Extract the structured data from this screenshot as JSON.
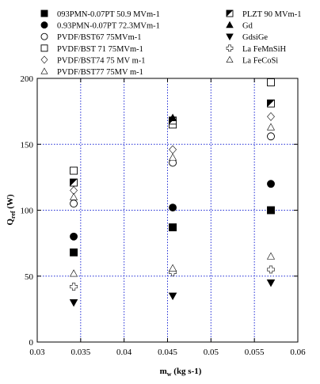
{
  "chart_data": {
    "type": "scatter",
    "xlabel": "m",
    "xlabel_sub": "w",
    "xlabel_unit": " (kg s-1)",
    "ylabel": "Q",
    "ylabel_sub": "ref",
    "ylabel_unit": " (W)",
    "xlim": [
      0.03,
      0.06
    ],
    "ylim": [
      0,
      200
    ],
    "x_ticks": [
      0.03,
      0.035,
      0.04,
      0.045,
      0.05,
      0.055,
      0.06
    ],
    "x_tick_labels": [
      "0.03",
      "0.035",
      "0.04",
      "0.045",
      "0.05",
      "0.055",
      "0.06"
    ],
    "y_ticks": [
      0,
      50,
      100,
      150,
      200
    ],
    "y_tick_labels": [
      "0",
      "50",
      "100",
      "150",
      "200"
    ],
    "grid": "dotted blue at major ticks",
    "legend_placement": "top, above plot area, two columns",
    "series": [
      {
        "name": "093PMN-0.07PT 50.9 MVm-1",
        "marker": "filled-square",
        "legend_col": 0,
        "legend_row": 0,
        "points": [
          [
            0.0342,
            68
          ],
          [
            0.0456,
            87
          ],
          [
            0.0569,
            100
          ]
        ]
      },
      {
        "name": "0.93PMN-0.07PT 72.3MVm-1",
        "marker": "filled-circle",
        "legend_col": 0,
        "legend_row": 1,
        "points": [
          [
            0.0342,
            80
          ],
          [
            0.0456,
            102
          ],
          [
            0.0569,
            120
          ]
        ]
      },
      {
        "name": "PVDF/BST67 75MVm-1",
        "marker": "open-circle",
        "legend_col": 0,
        "legend_row": 2,
        "points": [
          [
            0.0342,
            105
          ],
          [
            0.0456,
            136
          ],
          [
            0.0569,
            156
          ]
        ]
      },
      {
        "name": "PVDF/BST 71 75MVm-1",
        "marker": "open-square",
        "legend_col": 0,
        "legend_row": 3,
        "points": [
          [
            0.0342,
            130
          ],
          [
            0.0456,
            165
          ],
          [
            0.0569,
            197
          ]
        ]
      },
      {
        "name": "PVDF/BST74 75 MV m-1",
        "marker": "open-diamond",
        "legend_col": 0,
        "legend_row": 4,
        "points": [
          [
            0.0342,
            115
          ],
          [
            0.0456,
            146
          ],
          [
            0.0569,
            171
          ]
        ]
      },
      {
        "name": "PVDF/BST77 75MV m-1",
        "marker": "open-triangle-up",
        "legend_col": 0,
        "legend_row": 5,
        "points": [
          [
            0.0342,
            110
          ],
          [
            0.0456,
            140
          ],
          [
            0.0569,
            163
          ]
        ]
      },
      {
        "name": "PLZT 90 MVm-1",
        "marker": "half-filled-square",
        "legend_col": 1,
        "legend_row": 0,
        "points": [
          [
            0.0342,
            121
          ],
          [
            0.0456,
            168
          ],
          [
            0.0569,
            181
          ]
        ]
      },
      {
        "name": "Gd",
        "marker": "filled-triangle-up",
        "legend_col": 1,
        "legend_row": 1,
        "points": [
          [
            0.0456,
            170
          ]
        ]
      },
      {
        "name": "GdsiGe",
        "marker": "filled-triangle-down",
        "legend_col": 1,
        "legend_row": 2,
        "points": [
          [
            0.0342,
            30
          ],
          [
            0.0456,
            35
          ],
          [
            0.0569,
            45
          ]
        ]
      },
      {
        "name": "La FeMnSiH",
        "marker": "open-cross",
        "legend_col": 1,
        "legend_row": 3,
        "points": [
          [
            0.0342,
            42
          ],
          [
            0.0456,
            53
          ],
          [
            0.0569,
            55
          ]
        ]
      },
      {
        "name": "La FeCoSi",
        "marker": "open-triangle-up",
        "legend_col": 1,
        "legend_row": 4,
        "points": [
          [
            0.0342,
            52
          ],
          [
            0.0456,
            56
          ],
          [
            0.0569,
            65
          ]
        ]
      }
    ]
  }
}
